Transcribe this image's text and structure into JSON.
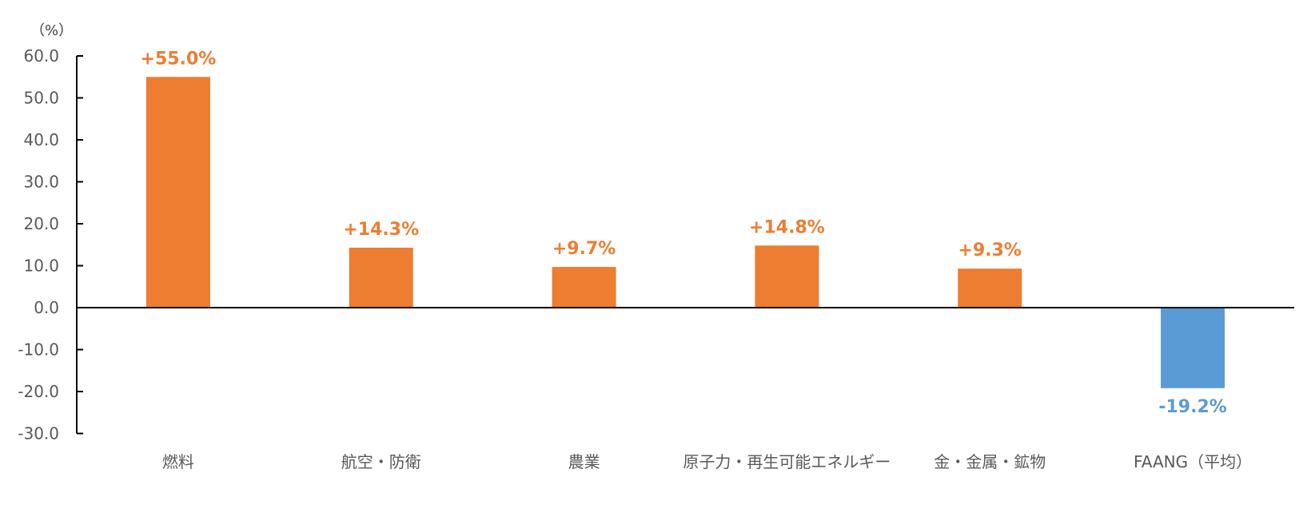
{
  "chart_data": {
    "type": "bar",
    "title": "",
    "xlabel": "",
    "ylabel": "",
    "unit_label": "（%）",
    "categories": [
      "燃料",
      "航空・防衛",
      "農業",
      "原子力・再生可能エネルギー",
      "金・金属・鉱物",
      "FAANG（平均）"
    ],
    "values": [
      55.0,
      14.3,
      9.7,
      14.8,
      9.3,
      -19.2
    ],
    "data_labels": [
      "+55.0%",
      "+14.3%",
      "+9.7%",
      "+14.8%",
      "+9.3%",
      "-19.2%"
    ],
    "ylim": [
      -30,
      60
    ],
    "yticks": [
      60,
      50,
      40,
      30,
      20,
      10,
      0,
      -10,
      -20,
      -30
    ],
    "ytick_labels": [
      "60.0",
      "50.0",
      "40.0",
      "30.0",
      "20.0",
      "10.0",
      "0.0",
      "-10.0",
      "-20.0",
      "-30.0"
    ],
    "grid": false,
    "legend": null,
    "colors": {
      "positive": "#ED7D31",
      "negative": "#5B9BD5",
      "axis": "#000000",
      "tick_text": "#595959"
    }
  }
}
